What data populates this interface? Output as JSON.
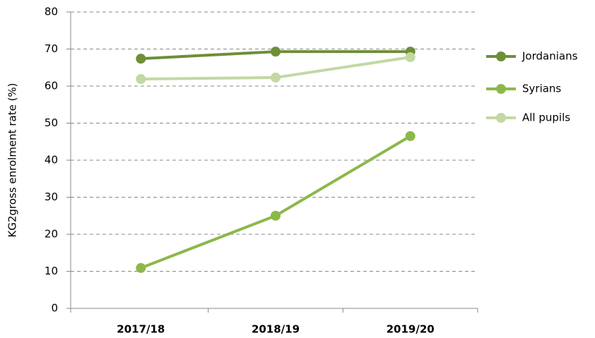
{
  "chart_data": {
    "type": "line",
    "y_label": "KG2gross enrolment rate (%)",
    "categories": [
      "2017/18",
      "2018/19",
      "2019/20"
    ],
    "series": [
      {
        "name": "Jordanians",
        "color": "#6e8e38",
        "values": [
          67.4,
          69.3,
          69.3
        ]
      },
      {
        "name": "Syrians",
        "color": "#8cb84a",
        "values": [
          10.9,
          25,
          46.5
        ]
      },
      {
        "name": "All pupils",
        "color": "#c3d8a2",
        "values": [
          61.9,
          62.3,
          67.8
        ]
      }
    ],
    "ylim": [
      0,
      80
    ],
    "yticks": [
      0,
      10,
      20,
      30,
      40,
      50,
      60,
      70,
      80
    ],
    "grid": true,
    "legend": "right"
  }
}
